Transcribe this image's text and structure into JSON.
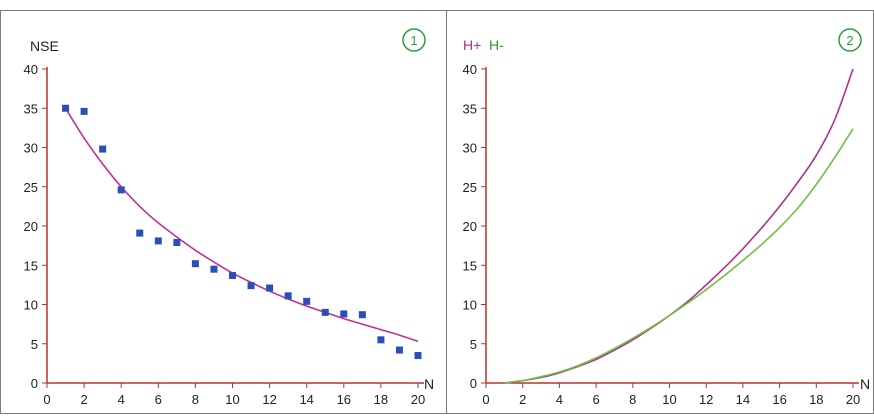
{
  "chart_data": [
    {
      "type": "scatter",
      "panel_number": "1",
      "ylabel": "NSE",
      "xlabel": "N",
      "xlim": [
        0,
        20
      ],
      "ylim": [
        0,
        40
      ],
      "x_ticks": [
        0,
        2,
        4,
        6,
        8,
        10,
        12,
        14,
        16,
        18,
        20
      ],
      "y_ticks": [
        0,
        5,
        10,
        15,
        20,
        25,
        30,
        35,
        40
      ],
      "grid": false,
      "colors": {
        "points": "#2b4fb6",
        "fit": "#c0309a",
        "axes": "#b8322a",
        "marker": "#2e9a3a"
      },
      "points": [
        [
          1,
          35.0
        ],
        [
          2,
          34.6
        ],
        [
          3,
          29.8
        ],
        [
          4,
          24.6
        ],
        [
          5,
          19.1
        ],
        [
          6,
          18.1
        ],
        [
          7,
          17.9
        ],
        [
          8,
          15.2
        ],
        [
          9,
          14.5
        ],
        [
          10,
          13.7
        ],
        [
          11,
          12.4
        ],
        [
          12,
          12.1
        ],
        [
          13,
          11.1
        ],
        [
          14,
          10.4
        ],
        [
          15,
          9.0
        ],
        [
          16,
          8.8
        ],
        [
          17,
          8.7
        ],
        [
          18,
          5.5
        ],
        [
          19,
          4.2
        ],
        [
          20,
          3.5
        ]
      ],
      "fit_curve": {
        "x": [
          1,
          2,
          3,
          4,
          5,
          6,
          7,
          8,
          9,
          10,
          11,
          12,
          13,
          14,
          15,
          16,
          17,
          18,
          19,
          20
        ],
        "y": [
          35.0,
          31.2,
          27.9,
          25.0,
          22.5,
          20.4,
          18.6,
          16.9,
          15.4,
          14.0,
          12.8,
          11.7,
          10.7,
          9.8,
          9.0,
          8.2,
          7.5,
          6.8,
          6.1,
          5.3
        ]
      }
    },
    {
      "type": "line",
      "panel_number": "2",
      "legend": [
        "H+",
        "H-"
      ],
      "xlabel": "N",
      "xlim": [
        0,
        20
      ],
      "ylim": [
        0,
        40
      ],
      "x_ticks": [
        0,
        2,
        4,
        6,
        8,
        10,
        12,
        14,
        16,
        18,
        20
      ],
      "y_ticks": [
        0,
        5,
        10,
        15,
        20,
        25,
        30,
        35,
        40
      ],
      "grid": false,
      "colors": {
        "axes": "#b8322a",
        "marker": "#2e9a3a"
      },
      "series": [
        {
          "name": "H+",
          "color": "#b0308c",
          "x": [
            1,
            2,
            3,
            4,
            5,
            6,
            7,
            8,
            9,
            10,
            11,
            12,
            13,
            14,
            15,
            16,
            17,
            18,
            19,
            20
          ],
          "y": [
            0,
            0.3,
            0.7,
            1.3,
            2.1,
            3.0,
            4.2,
            5.5,
            7.0,
            8.6,
            10.4,
            12.5,
            14.7,
            17.1,
            19.7,
            22.5,
            25.6,
            29.0,
            33.5,
            40.0
          ]
        },
        {
          "name": "H-",
          "color": "#6cc23c",
          "x": [
            1,
            2,
            3,
            4,
            5,
            6,
            7,
            8,
            9,
            10,
            11,
            12,
            13,
            14,
            15,
            16,
            17,
            18,
            19,
            20
          ],
          "y": [
            0,
            0.3,
            0.8,
            1.4,
            2.2,
            3.2,
            4.4,
            5.7,
            7.1,
            8.6,
            10.2,
            11.9,
            13.7,
            15.6,
            17.6,
            19.8,
            22.3,
            25.3,
            28.7,
            32.4
          ]
        }
      ]
    }
  ]
}
